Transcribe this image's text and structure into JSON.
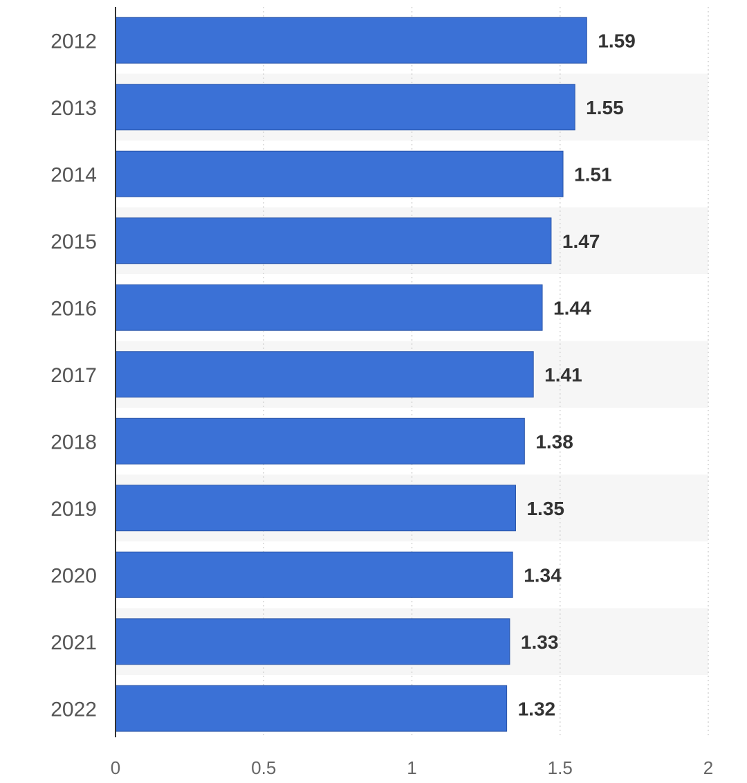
{
  "chart_data": {
    "type": "bar",
    "orientation": "horizontal",
    "categories": [
      "2012",
      "2013",
      "2014",
      "2015",
      "2016",
      "2017",
      "2018",
      "2019",
      "2020",
      "2021",
      "2022"
    ],
    "values": [
      1.59,
      1.55,
      1.51,
      1.47,
      1.44,
      1.41,
      1.38,
      1.35,
      1.34,
      1.33,
      1.32
    ],
    "data_labels": [
      "1.59",
      "1.55",
      "1.51",
      "1.47",
      "1.44",
      "1.41",
      "1.38",
      "1.35",
      "1.34",
      "1.33",
      "1.32"
    ],
    "x_ticks": [
      0,
      0.5,
      1,
      1.5,
      2
    ],
    "x_tick_labels": [
      "0",
      "0.5",
      "1",
      "1.5",
      "2"
    ],
    "xlim": [
      0,
      2
    ],
    "grid": "vertical dotted",
    "legend": "none",
    "colors": {
      "bar": "#3b71d6",
      "bar_edge": "#2a55a8",
      "axis": "#333333",
      "grid": "#d4d4d4",
      "band": "#f6f6f6"
    }
  }
}
